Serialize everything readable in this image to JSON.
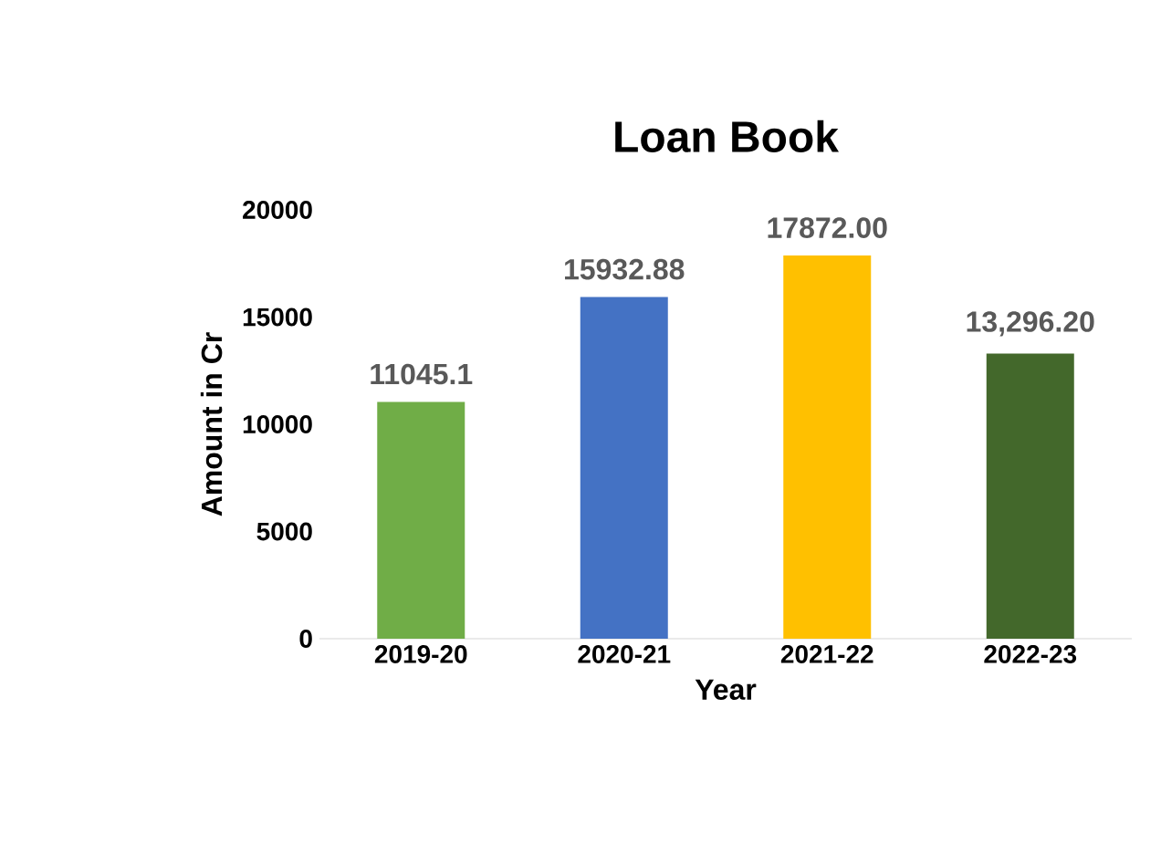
{
  "chart_data": {
    "type": "bar",
    "title": "Loan Book",
    "xlabel": "Year",
    "ylabel": "Amount in Cr",
    "categories": [
      "2019-20",
      "2020-21",
      "2021-22",
      "2022-23"
    ],
    "values": [
      11045.1,
      15932.88,
      17872.0,
      13296.2
    ],
    "value_labels": [
      "11045.1",
      "15932.88",
      "17872.00",
      "13,296.20"
    ],
    "colors": [
      "#70ad47",
      "#4472c4",
      "#ffc000",
      "#43682b"
    ],
    "ylim": [
      0,
      20000
    ],
    "yticks": [
      0,
      5000,
      10000,
      15000,
      20000
    ]
  }
}
